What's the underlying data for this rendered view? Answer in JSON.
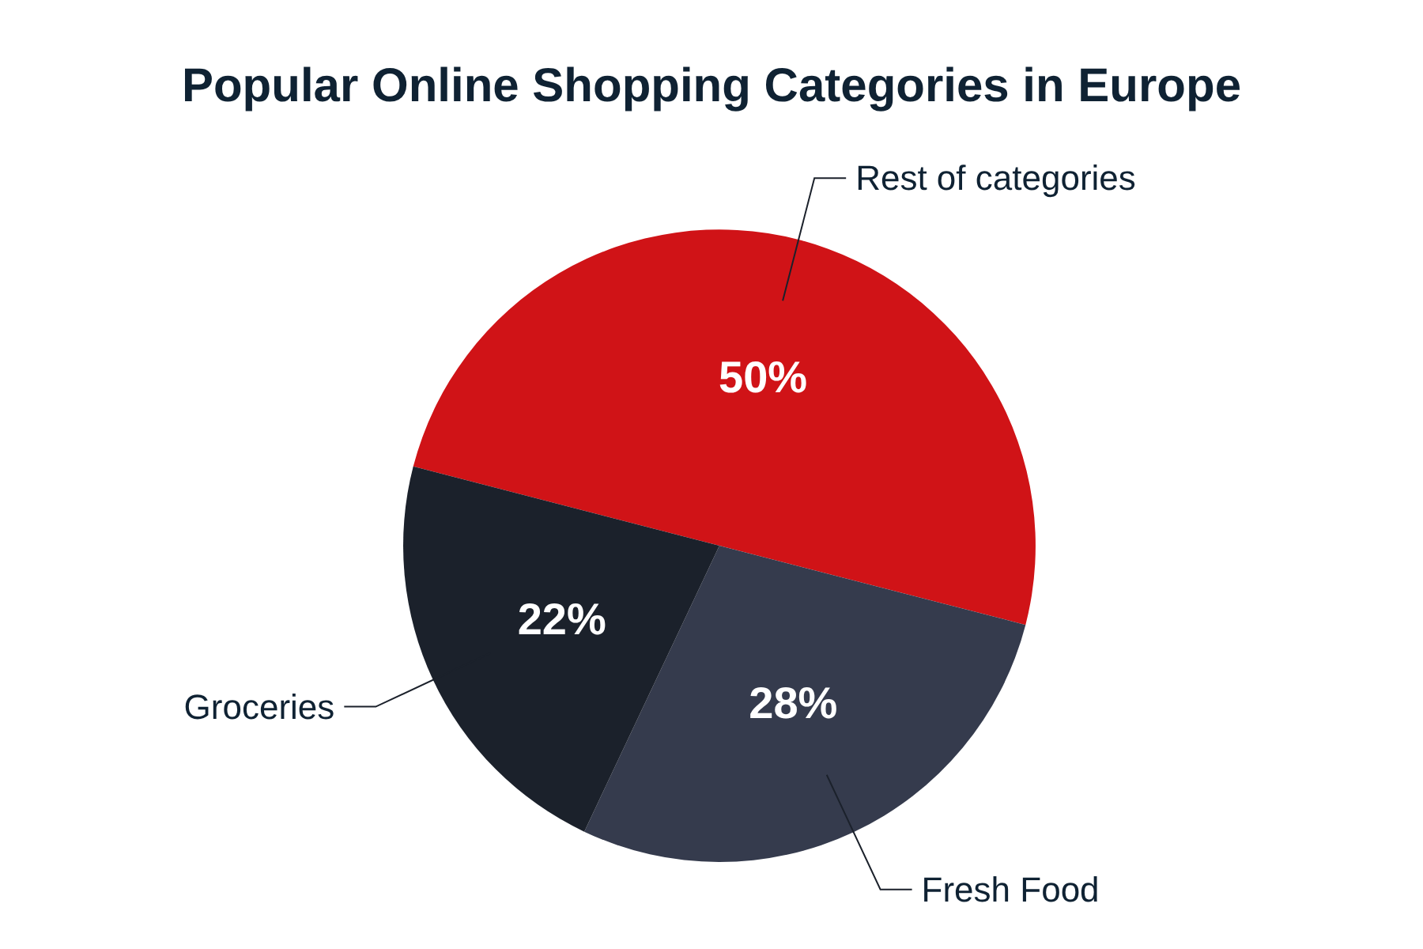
{
  "chart_data": {
    "type": "pie",
    "title": "Popular Online Shopping Categories in Europe",
    "categories": [
      "Rest of categories",
      "Fresh Food",
      "Groceries"
    ],
    "values": [
      50,
      28,
      22
    ],
    "colors": [
      "#d01317",
      "#353b4d",
      "#1b212b"
    ],
    "value_labels": [
      "50%",
      "28%",
      "22%"
    ],
    "legend": false
  }
}
